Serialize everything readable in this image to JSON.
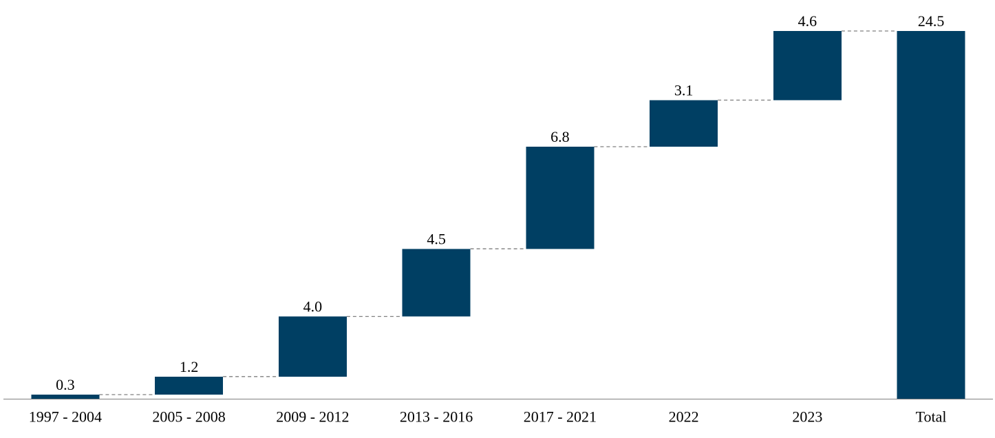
{
  "chart_data": {
    "type": "bar",
    "subtype": "waterfall",
    "title": "",
    "xlabel": "",
    "ylabel": "",
    "categories": [
      "1997 - 2004",
      "2005 - 2008",
      "2009 - 2012",
      "2013 - 2016",
      "2017 - 2021",
      "2022",
      "2023",
      "Total"
    ],
    "values": [
      0.3,
      1.2,
      4.0,
      4.5,
      6.8,
      3.1,
      4.6,
      24.5
    ],
    "value_labels": [
      "0.3",
      "1.2",
      "4.0",
      "4.5",
      "6.8",
      "3.1",
      "4.6",
      "24.5"
    ],
    "is_total": [
      false,
      false,
      false,
      false,
      false,
      false,
      false,
      true
    ],
    "ylim": [
      0,
      24.5
    ],
    "grid": false,
    "legend": "none",
    "y_axis_visible": false,
    "connectors": true,
    "colors": {
      "bar": "#003f63",
      "connector": "#7f7f7f",
      "axis": "#7f7f7f"
    }
  }
}
